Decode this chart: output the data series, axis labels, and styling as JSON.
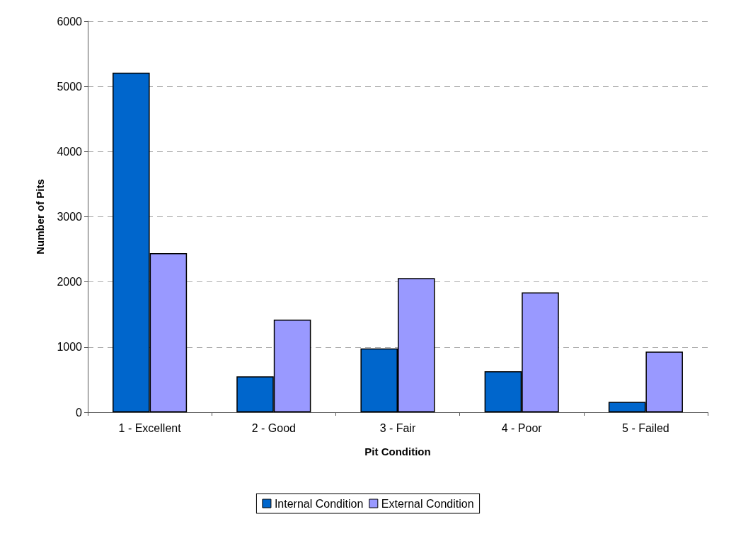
{
  "chart_data": {
    "type": "bar",
    "xlabel": "Pit Condition",
    "ylabel": "Number of Pits",
    "categories": [
      "1 - Excellent",
      "2 - Good",
      "3 - Fair",
      "4 - Poor",
      "5 - Failed"
    ],
    "series": [
      {
        "name": "Internal Condition",
        "color": "#0066cc",
        "values": [
          5210,
          550,
          980,
          630,
          160
        ]
      },
      {
        "name": "External Condition",
        "color": "#9999ff",
        "values": [
          2440,
          1420,
          2060,
          1840,
          930
        ]
      }
    ],
    "ylim": [
      0,
      6000
    ],
    "yticks": [
      0,
      1000,
      2000,
      3000,
      4000,
      5000,
      6000
    ],
    "grid": "y",
    "legend": "bottom"
  }
}
